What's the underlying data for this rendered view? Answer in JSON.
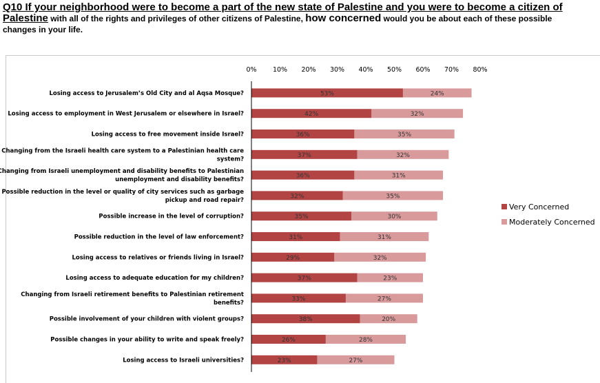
{
  "heading": {
    "part1": "Q10 If your neighborhood were to become a part of the new state of Palestine and you were to become a citizen of",
    "part2": "Palestine",
    "part3": " with all of the rights and privileges of other citizens of Palestine, ",
    "part4": "how concerned",
    "part5": " would you be about each of these possible changes in your life."
  },
  "colors": {
    "very": "#b24444",
    "moderately": "#d99a9c",
    "axis": "#000000"
  },
  "chart_data": {
    "type": "bar",
    "orientation": "horizontal",
    "stacked": true,
    "xlim": [
      0,
      80
    ],
    "xticks": [
      "0%",
      "10%",
      "20%",
      "30%",
      "40%",
      "50%",
      "60%",
      "70%",
      "80%"
    ],
    "legend_position": "right",
    "categories": [
      [
        "Losing access to Jerusalem’s Old City and al Aqsa Mosque?"
      ],
      [
        "Losing access to employment in West Jerusalem or elsewhere in Israel?"
      ],
      [
        "Losing access to free movement inside Israel?"
      ],
      [
        "Changing from the Israeli health care system to a Palestinian health care",
        "system?"
      ],
      [
        "Changing from Israeli unemployment and disability benefits to Palestinian",
        "unemployment and disability benefits?"
      ],
      [
        "Possible reduction in the level or quality of city services such as garbage",
        "pickup and road repair?"
      ],
      [
        "Possible increase in the level of corruption?"
      ],
      [
        "Possible reduction in the level of law enforcement?"
      ],
      [
        "Losing access to relatives or friends living in Israel?"
      ],
      [
        "Losing access to adequate education for my children?"
      ],
      [
        "Changing from Israeli retirement benefits to Palestinian retirement",
        "benefits?"
      ],
      [
        "Possible involvement of your children with violent groups?"
      ],
      [
        "Possible changes in your ability to write and speak freely?"
      ],
      [
        "Losing access to Israeli universities?"
      ]
    ],
    "series": [
      {
        "name": "Very Concerned",
        "values": [
          53,
          42,
          36,
          37,
          36,
          32,
          35,
          31,
          29,
          37,
          33,
          38,
          26,
          23
        ],
        "labels": [
          "53%",
          "42%",
          "36%",
          "37%",
          "36%",
          "32%",
          "35%",
          "31%",
          "29%",
          "37%",
          "33%",
          "38%",
          "26%",
          "23%"
        ]
      },
      {
        "name": "Moderately Concerned",
        "values": [
          24,
          32,
          35,
          32,
          31,
          35,
          30,
          31,
          32,
          23,
          27,
          20,
          28,
          27
        ],
        "labels": [
          "24%",
          "32%",
          "35%",
          "32%",
          "31%",
          "35%",
          "30%",
          "31%",
          "32%",
          "23%",
          "27%",
          "20%",
          "28%",
          "27%"
        ]
      }
    ]
  }
}
